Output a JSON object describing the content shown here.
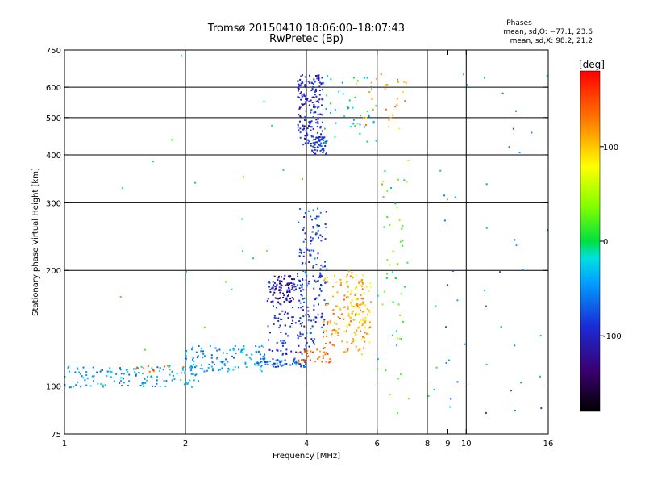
{
  "chart_data": {
    "type": "scatter",
    "title": "Tromsø 20150410 18:06:00–18:07:43",
    "subtitle": "RwPretec (Bp)",
    "xlabel": "Frequency [MHz]",
    "ylabel": "Stationary phase Virtual Height [km]",
    "x_scale": "log",
    "y_scale": "log",
    "xlim": [
      1,
      16
    ],
    "ylim": [
      75,
      750
    ],
    "x_ticks": [
      1,
      2,
      4,
      6,
      8,
      9,
      10,
      16
    ],
    "y_ticks": [
      75,
      100,
      200,
      300,
      400,
      500,
      600,
      750
    ],
    "x_gridlines": [
      2,
      4,
      6,
      8,
      10
    ],
    "y_gridlines": [
      100,
      200,
      300,
      400,
      500,
      600
    ],
    "grid": true,
    "stats": {
      "title": "Phases",
      "line1": "mean, sd,O: −77.1, 23.6",
      "line2": "mean, sd,X:  98.2, 21.2"
    },
    "colorbar": {
      "label": "[deg]",
      "range": [
        -180,
        180
      ],
      "ticks": [
        100,
        0,
        -100
      ],
      "placement": "right"
    },
    "clusters": [
      {
        "fmin": 1.0,
        "fmax": 2.2,
        "hmin": 99,
        "hmax": 113,
        "phase": -40,
        "n": 130
      },
      {
        "fmin": 1.5,
        "fmax": 2.0,
        "hmin": 108,
        "hmax": 113,
        "phase": 130,
        "n": 14
      },
      {
        "fmin": 2.0,
        "fmax": 3.2,
        "hmin": 109,
        "hmax": 128,
        "phase": -45,
        "n": 110
      },
      {
        "fmin": 3.0,
        "fmax": 4.0,
        "hmin": 112,
        "hmax": 118,
        "phase": -70,
        "n": 60
      },
      {
        "fmin": 3.2,
        "fmax": 4.0,
        "hmin": 120,
        "hmax": 190,
        "phase": -95,
        "n": 120
      },
      {
        "fmin": 3.3,
        "fmax": 3.7,
        "hmin": 165,
        "hmax": 195,
        "phase": -130,
        "n": 60
      },
      {
        "fmin": 3.8,
        "fmax": 4.5,
        "hmin": 125,
        "hmax": 290,
        "phase": -85,
        "n": 160
      },
      {
        "fmin": 3.8,
        "fmax": 4.6,
        "hmin": 115,
        "hmax": 125,
        "phase": 135,
        "n": 35
      },
      {
        "fmin": 4.4,
        "fmax": 5.6,
        "hmin": 120,
        "hmax": 200,
        "phase": 120,
        "n": 110
      },
      {
        "fmin": 5.0,
        "fmax": 5.8,
        "hmin": 130,
        "hmax": 195,
        "phase": 95,
        "n": 90
      },
      {
        "fmin": 3.8,
        "fmax": 4.4,
        "hmin": 420,
        "hmax": 650,
        "phase": -100,
        "n": 180
      },
      {
        "fmin": 4.1,
        "fmax": 4.5,
        "hmin": 400,
        "hmax": 450,
        "phase": -90,
        "n": 45
      },
      {
        "fmin": 4.4,
        "fmax": 6.0,
        "hmin": 430,
        "hmax": 650,
        "phase": -20,
        "n": 45
      },
      {
        "fmin": 5.3,
        "fmax": 7.2,
        "hmin": 460,
        "hmax": 650,
        "phase": 110,
        "n": 30
      },
      {
        "fmin": 6.0,
        "fmax": 7.2,
        "hmin": 85,
        "hmax": 400,
        "phase": 20,
        "n": 50
      },
      {
        "fmin": 8.5,
        "fmax": 16.0,
        "hmin": 85,
        "hmax": 650,
        "phase": -60,
        "n": 40
      },
      {
        "fmin": 1.0,
        "fmax": 16.0,
        "hmin": 85,
        "hmax": 750,
        "phase": 0,
        "n": 35
      }
    ]
  }
}
